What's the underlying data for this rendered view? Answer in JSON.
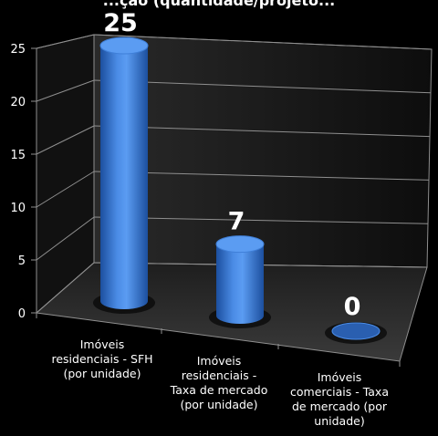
{
  "title_fragment": "...ção (quantidade/projeto...",
  "chart_data": {
    "type": "bar",
    "style": "3d-cylinder",
    "categories": [
      [
        "Imóveis",
        "residenciais - SFH",
        "(por unidade)"
      ],
      [
        "Imóveis",
        "residenciais -",
        "Taxa de mercado",
        "(por unidade)"
      ],
      [
        "Imóveis",
        "comerciais - Taxa",
        "de mercado (por",
        "unidade)"
      ]
    ],
    "values": [
      25,
      7,
      0
    ],
    "data_labels": [
      "25",
      "7",
      "0"
    ],
    "y_ticks": [
      "0",
      "5",
      "10",
      "15",
      "20",
      "25"
    ],
    "ylim": [
      0,
      25
    ],
    "grid": true,
    "legend": "none",
    "colors": {
      "bar": "#3f7fd8",
      "bar_dark": "#1c4f9e",
      "bar_top": "#5b9cf2",
      "background": "#000000",
      "gridline": "#8f8f8f",
      "text": "#ffffff"
    }
  }
}
